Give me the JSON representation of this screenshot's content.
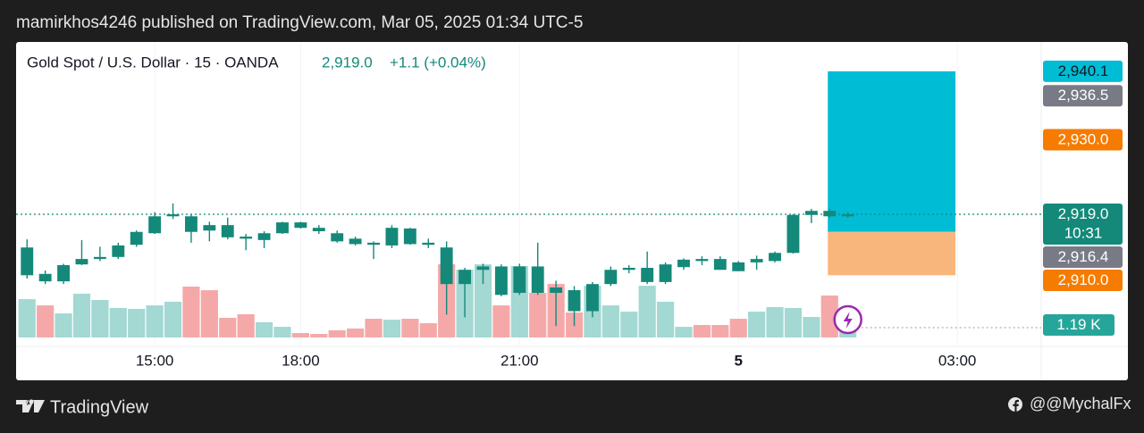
{
  "header": "mamirkhos4246 published on TradingView.com, Mar 05, 2025 01:34 UTC-5",
  "footer": {
    "brand": "TradingView",
    "author": "@@MychalFx"
  },
  "chart_data": {
    "type": "candlestick",
    "legend": {
      "symbol": "Gold Spot / U.S. Dollar · 15 · OANDA",
      "price": "2,919.0",
      "change": "+1.1 (+0.04%)"
    },
    "xlim": [
      -0.6,
      55.6
    ],
    "xticks": [
      {
        "value": 7,
        "label": "15:00"
      },
      {
        "value": 15,
        "label": "18:00"
      },
      {
        "value": 27,
        "label": "21:00"
      },
      {
        "value": 39,
        "label": "5"
      },
      {
        "value": 51,
        "label": "03:00"
      }
    ],
    "ylim": [
      2899.5,
      2944.3
    ],
    "y2lim": [
      0,
      35.9
    ],
    "grid": true,
    "candle_color": "#14897a",
    "volume_up_color": "#a3d8d3",
    "volume_down_color": "#f4a9a8",
    "open": [
      2910.0,
      2910.2,
      2909.1,
      2911.6,
      2912.4,
      2912.7,
      2914.5,
      2916.2,
      2918.7,
      2918.7,
      2917.4,
      2917.4,
      2915.7,
      2915.2,
      2916.2,
      2917.8,
      2917.0,
      2916.2,
      2915.4,
      2914.8,
      2914.4,
      2916.9,
      2914.8,
      2914.1,
      2908.7,
      2910.8,
      2911.3,
      2907.4,
      2911.3,
      2908.2,
      2907.8,
      2904.7,
      2908.7,
      2910.8,
      2909.0,
      2909.0,
      2911.2,
      2912.4,
      2912.4,
      2911.9,
      2911.9,
      2912.1,
      2913.3,
      2918.9,
      2919.5,
      2918.7
    ],
    "high": [
      2915.3,
      2910.7,
      2911.7,
      2915.2,
      2914.2,
      2914.8,
      2916.6,
      2919.3,
      2920.6,
      2919.0,
      2917.9,
      2918.5,
      2916.1,
      2916.5,
      2917.9,
      2917.9,
      2917.4,
      2916.6,
      2915.7,
      2915.0,
      2917.4,
      2917.0,
      2915.4,
      2915.0,
      2911.1,
      2911.7,
      2911.6,
      2911.7,
      2914.8,
      2909.2,
      2908.4,
      2909.0,
      2911.3,
      2911.5,
      2913.5,
      2911.9,
      2912.5,
      2912.8,
      2912.8,
      2912.1,
      2912.9,
      2913.5,
      2919.0,
      2919.8,
      2919.8,
      2919.3
    ],
    "low": [
      2909.5,
      2908.7,
      2908.7,
      2911.5,
      2912.1,
      2912.4,
      2914.2,
      2916.1,
      2918.3,
      2914.8,
      2915.0,
      2915.3,
      2913.7,
      2914.0,
      2916.1,
      2916.9,
      2916.1,
      2914.8,
      2914.4,
      2912.4,
      2914.0,
      2914.5,
      2914.0,
      2904.2,
      2903.8,
      2908.7,
      2906.9,
      2907.1,
      2907.1,
      2902.5,
      2902.5,
      2903.8,
      2908.4,
      2910.3,
      2908.7,
      2908.7,
      2910.8,
      2911.5,
      2910.8,
      2910.6,
      2910.8,
      2911.9,
      2913.2,
      2917.7,
      2918.5,
      2918.5
    ],
    "close": [
      2914.1,
      2909.1,
      2911.5,
      2912.4,
      2912.7,
      2914.4,
      2916.4,
      2918.7,
      2919.0,
      2916.4,
      2916.6,
      2915.6,
      2915.4,
      2916.2,
      2917.8,
      2917.0,
      2916.5,
      2915.0,
      2914.6,
      2914.5,
      2917.0,
      2914.6,
      2914.5,
      2908.7,
      2910.8,
      2911.3,
      2907.1,
      2911.3,
      2907.4,
      2907.4,
      2904.7,
      2908.7,
      2910.8,
      2911.1,
      2911.1,
      2911.6,
      2912.3,
      2912.1,
      2910.8,
      2910.6,
      2912.4,
      2913.3,
      2918.9,
      2919.5,
      2918.7,
      2919.0
    ],
    "volume": [
      4.67,
      3.91,
      2.93,
      5.33,
      4.57,
      3.59,
      3.48,
      3.91,
      4.35,
      6.2,
      5.76,
      2.39,
      2.83,
      1.85,
      1.3,
      0.54,
      0.43,
      0.87,
      1.09,
      2.28,
      2.17,
      2.28,
      1.74,
      8.91,
      8.26,
      8.91,
      3.91,
      8.7,
      5.43,
      6.52,
      3.04,
      6.3,
      3.91,
      3.15,
      6.3,
      4.35,
      1.3,
      1.52,
      1.52,
      2.28,
      3.15,
      3.7,
      3.59,
      2.5,
      5.11,
      1.19
    ],
    "current_price": {
      "value": 2919.0,
      "label": "2,919.0",
      "countdown": "10:31",
      "color": "#14897a"
    },
    "price_labels": [
      {
        "value": 2940.1,
        "label": "2,940.1",
        "color": "#00bcd4",
        "text_color": "#131722"
      },
      {
        "value": 2936.5,
        "label": "2,936.5",
        "color": "#787b86",
        "text_color": "#ffffff"
      },
      {
        "value": 2930.0,
        "label": "2,930.0",
        "color": "#f57c00",
        "text_color": "#ffffff"
      },
      {
        "value": 2916.4,
        "label": "2,916.4",
        "color": "#787b86",
        "text_color": "#ffffff"
      },
      {
        "value": 2910.0,
        "label": "2,910.0",
        "color": "#f57c00",
        "text_color": "#ffffff"
      }
    ],
    "volume_marker": {
      "value": 1.19,
      "label": "1.19 K",
      "color": "#26a69a"
    },
    "position": {
      "x": [
        43.9,
        50.9
      ],
      "target": 2940.1,
      "entry": 2916.4,
      "stop": 2910.0,
      "target_color": "#00bcd4",
      "stop_color": "#f8b67c"
    }
  }
}
